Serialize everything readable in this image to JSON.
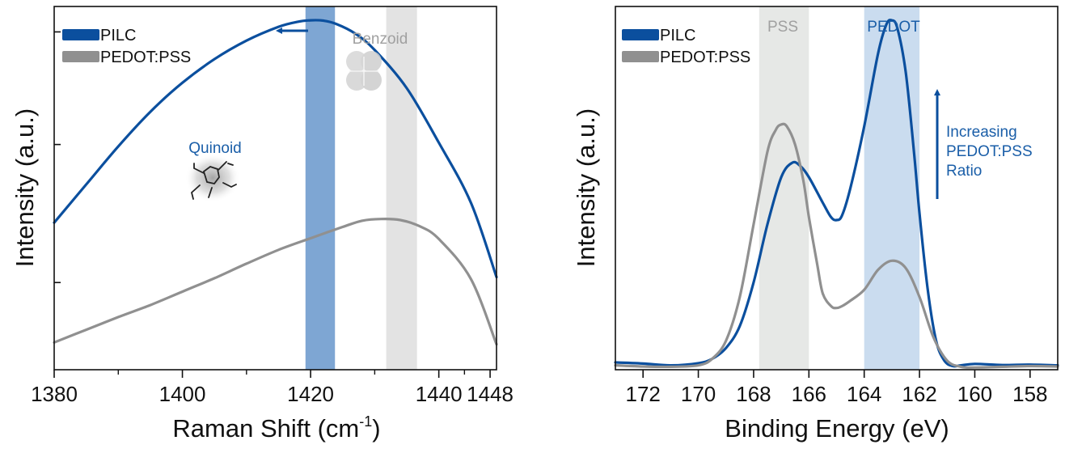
{
  "colors": {
    "pilc": "#0b4f9e",
    "pedot_pss": "#909090",
    "band_quinoid": "#7ea6d3",
    "band_benzoid": "#e3e3e3",
    "band_pss": "#e6e8e6",
    "band_pedot": "#cadcef",
    "text_pilc": "#1a5ea8",
    "text_gray": "#a0a0a0"
  },
  "chart_data": [
    {
      "type": "line",
      "xlabel": "Raman Shift (cm",
      "xlabel_sup": "-1",
      "xlabel_end": ")",
      "ylabel": "Intensity (a.u.)",
      "xlim": [
        1380,
        1449
      ],
      "ylim": [
        0,
        1
      ],
      "x_ticks": [
        1380,
        1400,
        1420,
        1440,
        1448
      ],
      "x_tick_labels": [
        "1380",
        "1400",
        "1420",
        "1440",
        "1448"
      ],
      "minor_x_ticks": [
        1390,
        1410,
        1430,
        1444
      ],
      "y_ticks": [
        0.24,
        0.62,
        0.93
      ],
      "legend": {
        "placement": "top-left",
        "entries": [
          "PILC",
          "PEDOT:PSS"
        ]
      },
      "bands": [
        {
          "name": "quinoid",
          "x0": 1419.2,
          "x1": 1423.8,
          "color": "band_quinoid"
        },
        {
          "name": "benzoid",
          "x0": 1431.8,
          "x1": 1436.6,
          "color": "band_benzoid"
        }
      ],
      "annotations": {
        "quinoid": "Quinoid",
        "benzoid": "Benzoid"
      },
      "series": [
        {
          "name": "PILC",
          "color": "pilc",
          "x": [
            1380,
            1385,
            1390,
            1395,
            1400,
            1405,
            1410,
            1415,
            1418,
            1420,
            1422,
            1424,
            1427,
            1430,
            1435,
            1440,
            1445,
            1449
          ],
          "y": [
            0.405,
            0.51,
            0.615,
            0.71,
            0.79,
            0.855,
            0.906,
            0.944,
            0.958,
            0.962,
            0.961,
            0.952,
            0.925,
            0.88,
            0.775,
            0.625,
            0.46,
            0.255
          ]
        },
        {
          "name": "PEDOT:PSS",
          "color": "pedot_pss",
          "x": [
            1380,
            1385,
            1390,
            1395,
            1400,
            1405,
            1410,
            1415,
            1420,
            1425,
            1428,
            1431,
            1434,
            1437,
            1440,
            1445,
            1449
          ],
          "y": [
            0.075,
            0.11,
            0.145,
            0.178,
            0.215,
            0.252,
            0.292,
            0.33,
            0.362,
            0.393,
            0.41,
            0.415,
            0.412,
            0.395,
            0.36,
            0.25,
            0.07
          ]
        }
      ]
    },
    {
      "type": "line",
      "xlabel": "Binding Energy (eV)",
      "ylabel": "Intensity (a.u.)",
      "xlim": [
        173,
        157
      ],
      "ylim": [
        0,
        1
      ],
      "x_ticks": [
        172,
        170,
        168,
        166,
        164,
        162,
        160,
        158
      ],
      "x_tick_labels": [
        "172",
        "170",
        "168",
        "166",
        "164",
        "162",
        "160",
        "158"
      ],
      "legend": {
        "placement": "top-left",
        "entries": [
          "PILC",
          "PEDOT:PSS"
        ]
      },
      "bands": [
        {
          "name": "pss",
          "x0": 167.8,
          "x1": 166.0,
          "color": "band_pss",
          "label": "PSS"
        },
        {
          "name": "pedot",
          "x0": 164.0,
          "x1": 162.0,
          "color": "band_pedot",
          "label": "PEDOT"
        }
      ],
      "annotations": {
        "increasing": [
          "Increasing",
          "PEDOT:PSS",
          "Ratio"
        ]
      },
      "series": [
        {
          "name": "PILC",
          "color": "pilc",
          "x": [
            173,
            172,
            171,
            170,
            169.5,
            169,
            168.5,
            168,
            167.5,
            167,
            166.6,
            166.3,
            166,
            165.5,
            165.2,
            165,
            164.8,
            164.5,
            164,
            163.5,
            163.2,
            163,
            162.8,
            162.5,
            162.2,
            162,
            161.7,
            161.4,
            161.1,
            160.8,
            160.5,
            160,
            159,
            158,
            157
          ],
          "y": [
            0.02,
            0.017,
            0.012,
            0.018,
            0.03,
            0.06,
            0.12,
            0.24,
            0.4,
            0.53,
            0.57,
            0.56,
            0.53,
            0.46,
            0.42,
            0.412,
            0.425,
            0.5,
            0.67,
            0.87,
            0.95,
            0.962,
            0.94,
            0.82,
            0.6,
            0.43,
            0.22,
            0.08,
            0.025,
            0.01,
            0.012,
            0.016,
            0.013,
            0.014,
            0.012
          ]
        },
        {
          "name": "PEDOT:PSS",
          "color": "pedot_pss",
          "x": [
            173,
            172,
            171,
            170,
            169.5,
            169,
            168.5,
            168,
            167.5,
            167.2,
            167,
            166.8,
            166.5,
            166.2,
            166,
            165.7,
            165.5,
            165.2,
            165,
            164.8,
            164.5,
            164,
            163.5,
            163,
            162.5,
            162,
            161.5,
            161,
            160.5,
            160,
            159,
            158,
            157
          ],
          "y": [
            0.012,
            0.009,
            0.008,
            0.012,
            0.03,
            0.08,
            0.2,
            0.4,
            0.6,
            0.66,
            0.675,
            0.67,
            0.62,
            0.52,
            0.42,
            0.29,
            0.21,
            0.175,
            0.17,
            0.175,
            0.19,
            0.22,
            0.275,
            0.3,
            0.28,
            0.2,
            0.09,
            0.025,
            0.008,
            0.006,
            0.008,
            0.01,
            0.009
          ]
        }
      ]
    }
  ]
}
